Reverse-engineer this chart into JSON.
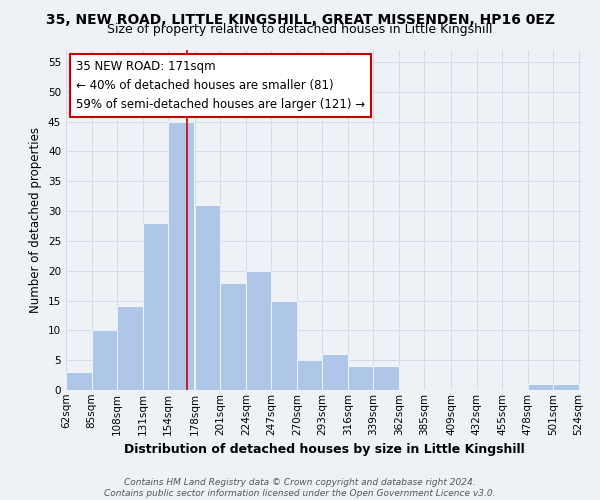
{
  "title": "35, NEW ROAD, LITTLE KINGSHILL, GREAT MISSENDEN, HP16 0EZ",
  "subtitle": "Size of property relative to detached houses in Little Kingshill",
  "xlabel": "Distribution of detached houses by size in Little Kingshill",
  "ylabel": "Number of detached properties",
  "bar_left_edges": [
    62,
    85,
    108,
    131,
    154,
    178,
    201,
    224,
    247,
    270,
    293,
    316,
    339,
    362,
    385,
    409,
    432,
    455,
    478,
    501
  ],
  "bar_heights": [
    3,
    10,
    14,
    28,
    45,
    31,
    18,
    20,
    15,
    5,
    6,
    4,
    4,
    0,
    0,
    0,
    0,
    0,
    1,
    1
  ],
  "bin_width": 23,
  "bar_color": "#aec6e8",
  "bar_edgecolor": "#ffffff",
  "property_line_x": 171,
  "property_line_color": "#cc0000",
  "annotation_box_text": "35 NEW ROAD: 171sqm\n← 40% of detached houses are smaller (81)\n59% of semi-detached houses are larger (121) →",
  "ylim": [
    0,
    57
  ],
  "yticks": [
    0,
    5,
    10,
    15,
    20,
    25,
    30,
    35,
    40,
    45,
    50,
    55
  ],
  "xtick_labels": [
    "62sqm",
    "85sqm",
    "108sqm",
    "131sqm",
    "154sqm",
    "178sqm",
    "201sqm",
    "224sqm",
    "247sqm",
    "270sqm",
    "293sqm",
    "316sqm",
    "339sqm",
    "362sqm",
    "385sqm",
    "409sqm",
    "432sqm",
    "455sqm",
    "478sqm",
    "501sqm",
    "524sqm"
  ],
  "grid_color": "#d0dce8",
  "background_color": "#eef2f7",
  "footer_text": "Contains HM Land Registry data © Crown copyright and database right 2024.\nContains public sector information licensed under the Open Government Licence v3.0.",
  "title_fontsize": 10,
  "subtitle_fontsize": 9,
  "xlabel_fontsize": 9,
  "ylabel_fontsize": 8.5,
  "annotation_fontsize": 8.5,
  "tick_fontsize": 7.5,
  "footer_fontsize": 6.5
}
